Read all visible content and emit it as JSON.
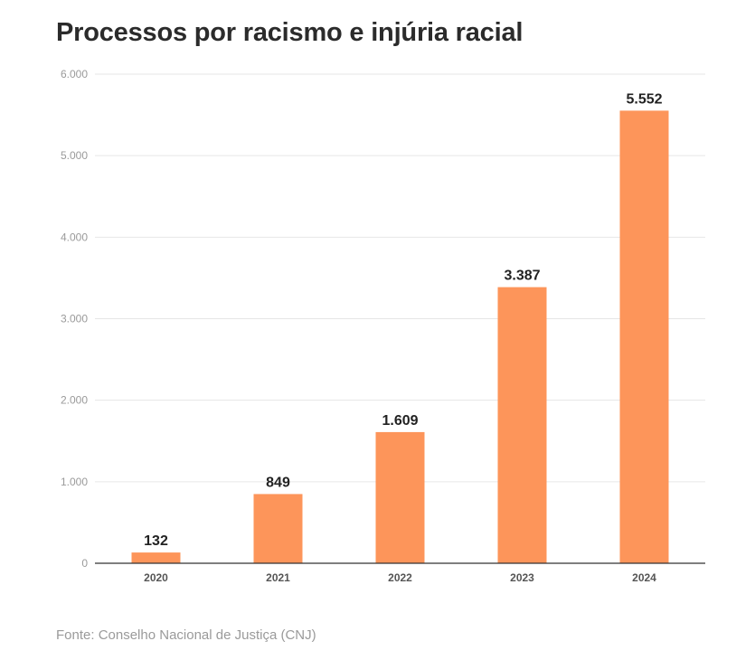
{
  "title": "Processos por racismo e injúria racial",
  "source": "Fonte: Conselho Nacional de Justiça (CNJ)",
  "colors": {
    "bar": "#fd955a",
    "grid": "#e6e6e6",
    "axis": "#333333"
  },
  "chart_data": {
    "type": "bar",
    "title": "Processos por racismo e injúria racial",
    "categories": [
      "2020",
      "2021",
      "2022",
      "2023",
      "2024"
    ],
    "values": [
      132,
      849,
      1609,
      3387,
      5552
    ],
    "value_labels": [
      "132",
      "849",
      "1.609",
      "3.387",
      "5.552"
    ],
    "yticks": [
      0,
      1000,
      2000,
      3000,
      4000,
      5000,
      6000
    ],
    "ytick_labels": [
      "0",
      "1.000",
      "2.000",
      "3.000",
      "4.000",
      "5.000",
      "6.000"
    ],
    "ylim": [
      0,
      6000
    ],
    "xlabel": "",
    "ylabel": "",
    "grid": true
  }
}
